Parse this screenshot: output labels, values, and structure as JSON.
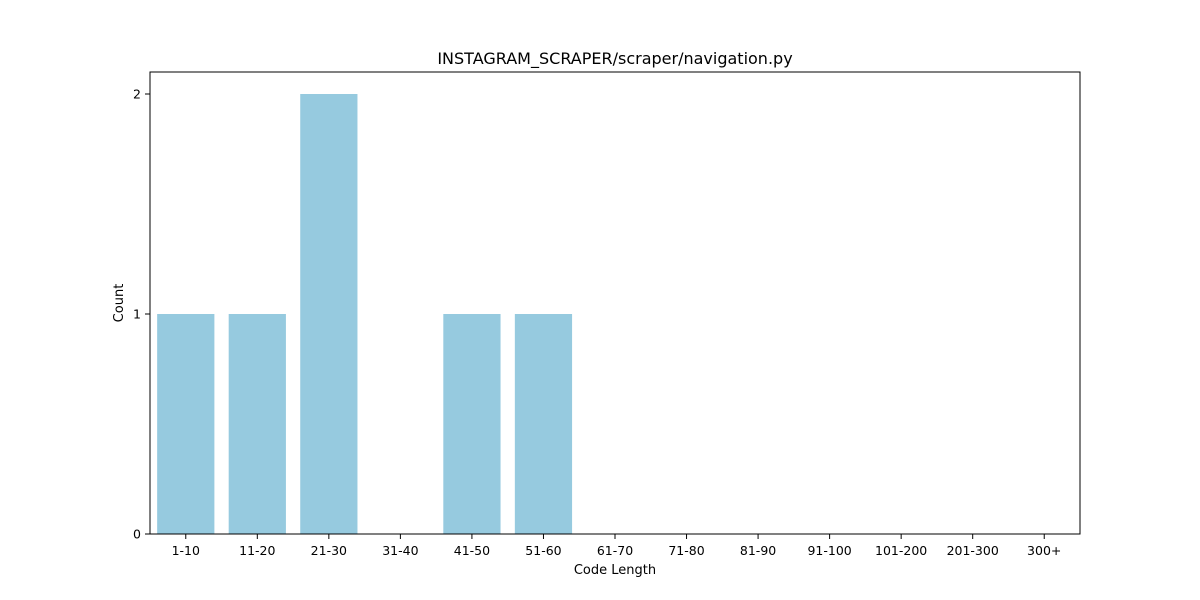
{
  "chart_data": {
    "type": "bar",
    "title": "INSTAGRAM_SCRAPER/scraper/navigation.py",
    "xlabel": "Code Length",
    "ylabel": "Count",
    "categories": [
      "1-10",
      "11-20",
      "21-30",
      "31-40",
      "41-50",
      "51-60",
      "61-70",
      "71-80",
      "81-90",
      "91-100",
      "101-200",
      "201-300",
      "300+"
    ],
    "values": [
      1,
      1,
      2,
      0,
      1,
      1,
      0,
      0,
      0,
      0,
      0,
      0,
      0
    ],
    "ylim": [
      0,
      2.1
    ],
    "yticks": [
      0,
      1,
      2
    ],
    "grid": false,
    "bar_color": "#96cadf"
  }
}
